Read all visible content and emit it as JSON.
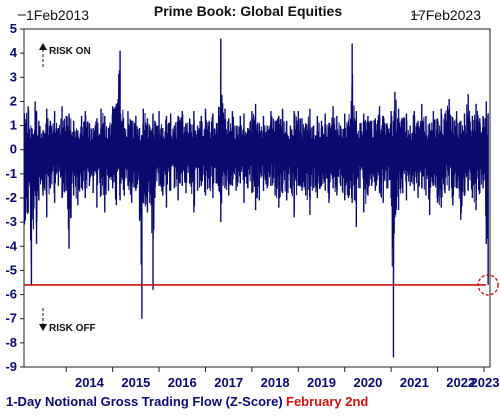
{
  "chart_data": {
    "type": "line",
    "title": "Prime Book: Global Equities",
    "start_label": "1Feb2013",
    "end_label": "17Feb2023",
    "xlabel": "",
    "ylabel": "",
    "x_range": [
      2013.09,
      2023.13
    ],
    "ylim": [
      -9,
      5
    ],
    "y_ticks": [
      5,
      4,
      3,
      2,
      1,
      0,
      -1,
      -2,
      -3,
      -4,
      -5,
      -6,
      -7,
      -8,
      -9
    ],
    "x_ticks": [
      "2014",
      "2015",
      "2016",
      "2017",
      "2018",
      "2019",
      "2020",
      "2021",
      "2022",
      "2023"
    ],
    "grid": false,
    "colors": {
      "series": "#0a0a6e",
      "threshold": "#cc1111",
      "text": "#0a0a6e"
    },
    "series": [
      {
        "name": "1-Day Notional Gross Trading Flow (Z-Score)",
        "x": [
          2013.1,
          2013.18,
          2013.25,
          2013.33,
          2013.36,
          2013.41,
          2013.5,
          2013.58,
          2013.66,
          2013.75,
          2013.83,
          2013.91,
          2014.0,
          2014.06,
          2014.16,
          2014.25,
          2014.33,
          2014.41,
          2014.5,
          2014.58,
          2014.66,
          2014.75,
          2014.83,
          2014.91,
          2015.0,
          2015.08,
          2015.16,
          2015.25,
          2015.33,
          2015.41,
          2015.5,
          2015.58,
          2015.63,
          2015.66,
          2015.75,
          2015.83,
          2015.87,
          2015.91,
          2016.0,
          2016.08,
          2016.16,
          2016.25,
          2016.33,
          2016.41,
          2016.5,
          2016.58,
          2016.66,
          2016.75,
          2016.83,
          2016.91,
          2017.0,
          2017.08,
          2017.16,
          2017.25,
          2017.33,
          2017.42,
          2017.5,
          2017.58,
          2017.66,
          2017.75,
          2017.83,
          2017.91,
          2018.0,
          2018.08,
          2018.16,
          2018.25,
          2018.33,
          2018.41,
          2018.5,
          2018.58,
          2018.66,
          2018.75,
          2018.83,
          2018.91,
          2019.0,
          2019.08,
          2019.16,
          2019.25,
          2019.33,
          2019.41,
          2019.5,
          2019.58,
          2019.66,
          2019.75,
          2019.83,
          2019.91,
          2020.0,
          2020.08,
          2020.16,
          2020.21,
          2020.25,
          2020.33,
          2020.41,
          2020.5,
          2020.58,
          2020.66,
          2020.75,
          2020.83,
          2020.91,
          2021.0,
          2021.05,
          2021.08,
          2021.16,
          2021.25,
          2021.33,
          2021.41,
          2021.5,
          2021.58,
          2021.66,
          2021.75,
          2021.83,
          2021.91,
          2022.0,
          2022.08,
          2022.16,
          2022.25,
          2022.33,
          2022.41,
          2022.5,
          2022.58,
          2022.66,
          2022.75,
          2022.83,
          2022.91,
          2022.98,
          2023.05,
          2023.09
        ],
        "hi": [
          1.5,
          1.8,
          0.9,
          2.0,
          1.6,
          1.2,
          0.8,
          1.7,
          1.2,
          1.6,
          0.9,
          1.8,
          1.4,
          1.5,
          1.2,
          0.8,
          1.4,
          1.6,
          1.1,
          0.9,
          1.3,
          1.7,
          1.4,
          0.9,
          1.8,
          1.9,
          4.1,
          0.9,
          1.6,
          1.2,
          1.4,
          0.9,
          0.6,
          1.7,
          1.3,
          0.8,
          1.5,
          1.2,
          1.6,
          0.9,
          1.4,
          1.5,
          1.0,
          1.4,
          1.6,
          1.1,
          1.3,
          1.6,
          1.0,
          1.4,
          1.7,
          1.2,
          1.5,
          1.1,
          4.6,
          1.7,
          1.3,
          1.6,
          1.0,
          1.4,
          1.5,
          0.9,
          1.6,
          1.9,
          1.1,
          1.4,
          1.0,
          1.6,
          1.2,
          1.4,
          1.7,
          1.2,
          1.0,
          1.6,
          1.6,
          1.3,
          1.1,
          1.7,
          1.0,
          1.4,
          1.2,
          1.5,
          1.1,
          1.8,
          1.4,
          1.0,
          1.5,
          1.2,
          4.4,
          1.3,
          1.6,
          1.1,
          1.5,
          1.4,
          1.2,
          1.3,
          1.8,
          1.4,
          1.1,
          1.6,
          1.2,
          2.4,
          1.7,
          1.3,
          1.5,
          1.0,
          1.6,
          1.2,
          1.9,
          1.4,
          1.1,
          1.6,
          1.3,
          1.7,
          1.5,
          2.1,
          1.3,
          1.6,
          1.2,
          1.5,
          2.3,
          1.4,
          1.9,
          1.3,
          1.4,
          2.0,
          1.5
        ],
        "lo": [
          -3.1,
          -2.6,
          -5.6,
          -1.7,
          -3.9,
          -2.1,
          -1.9,
          -2.8,
          -1.6,
          -2.2,
          -1.5,
          -2.0,
          -1.7,
          -4.1,
          -1.9,
          -2.3,
          -1.6,
          -2.0,
          -1.5,
          -1.8,
          -2.4,
          -1.9,
          -2.6,
          -1.7,
          -1.6,
          -2.3,
          -2.1,
          -1.9,
          -1.5,
          -2.2,
          -1.7,
          -2.9,
          -7.0,
          -2.2,
          -2.6,
          -2.3,
          -5.8,
          -2.0,
          -1.5,
          -1.9,
          -2.4,
          -1.7,
          -1.6,
          -2.1,
          -1.5,
          -1.8,
          -1.4,
          -2.6,
          -1.7,
          -1.5,
          -1.9,
          -1.6,
          -2.0,
          -1.4,
          -3.0,
          -1.6,
          -1.9,
          -1.5,
          -1.7,
          -1.4,
          -2.2,
          -1.6,
          -1.8,
          -2.5,
          -2.1,
          -1.7,
          -1.6,
          -1.5,
          -1.9,
          -2.4,
          -1.8,
          -2.1,
          -1.6,
          -2.8,
          -1.5,
          -1.7,
          -1.9,
          -2.7,
          -1.6,
          -2.0,
          -1.5,
          -1.7,
          -2.2,
          -1.6,
          -1.9,
          -1.5,
          -2.1,
          -2.0,
          -2.2,
          -2.1,
          -3.2,
          -1.6,
          -2.6,
          -1.9,
          -1.5,
          -1.7,
          -1.8,
          -2.2,
          -1.6,
          -2.0,
          -8.6,
          -2.8,
          -2.5,
          -1.8,
          -2.1,
          -1.5,
          -1.7,
          -2.0,
          -1.6,
          -1.9,
          -2.7,
          -1.5,
          -2.2,
          -2.4,
          -1.8,
          -1.7,
          -2.3,
          -1.6,
          -2.9,
          -1.9,
          -1.7,
          -2.0,
          -2.5,
          -1.8,
          -1.6,
          -3.9,
          -5.6
        ]
      }
    ],
    "threshold": {
      "name": "February 2nd",
      "value": -5.6
    },
    "annotations": {
      "risk_on": "RISK ON",
      "risk_off": "RISK OFF"
    },
    "legend": "bottom-left"
  }
}
